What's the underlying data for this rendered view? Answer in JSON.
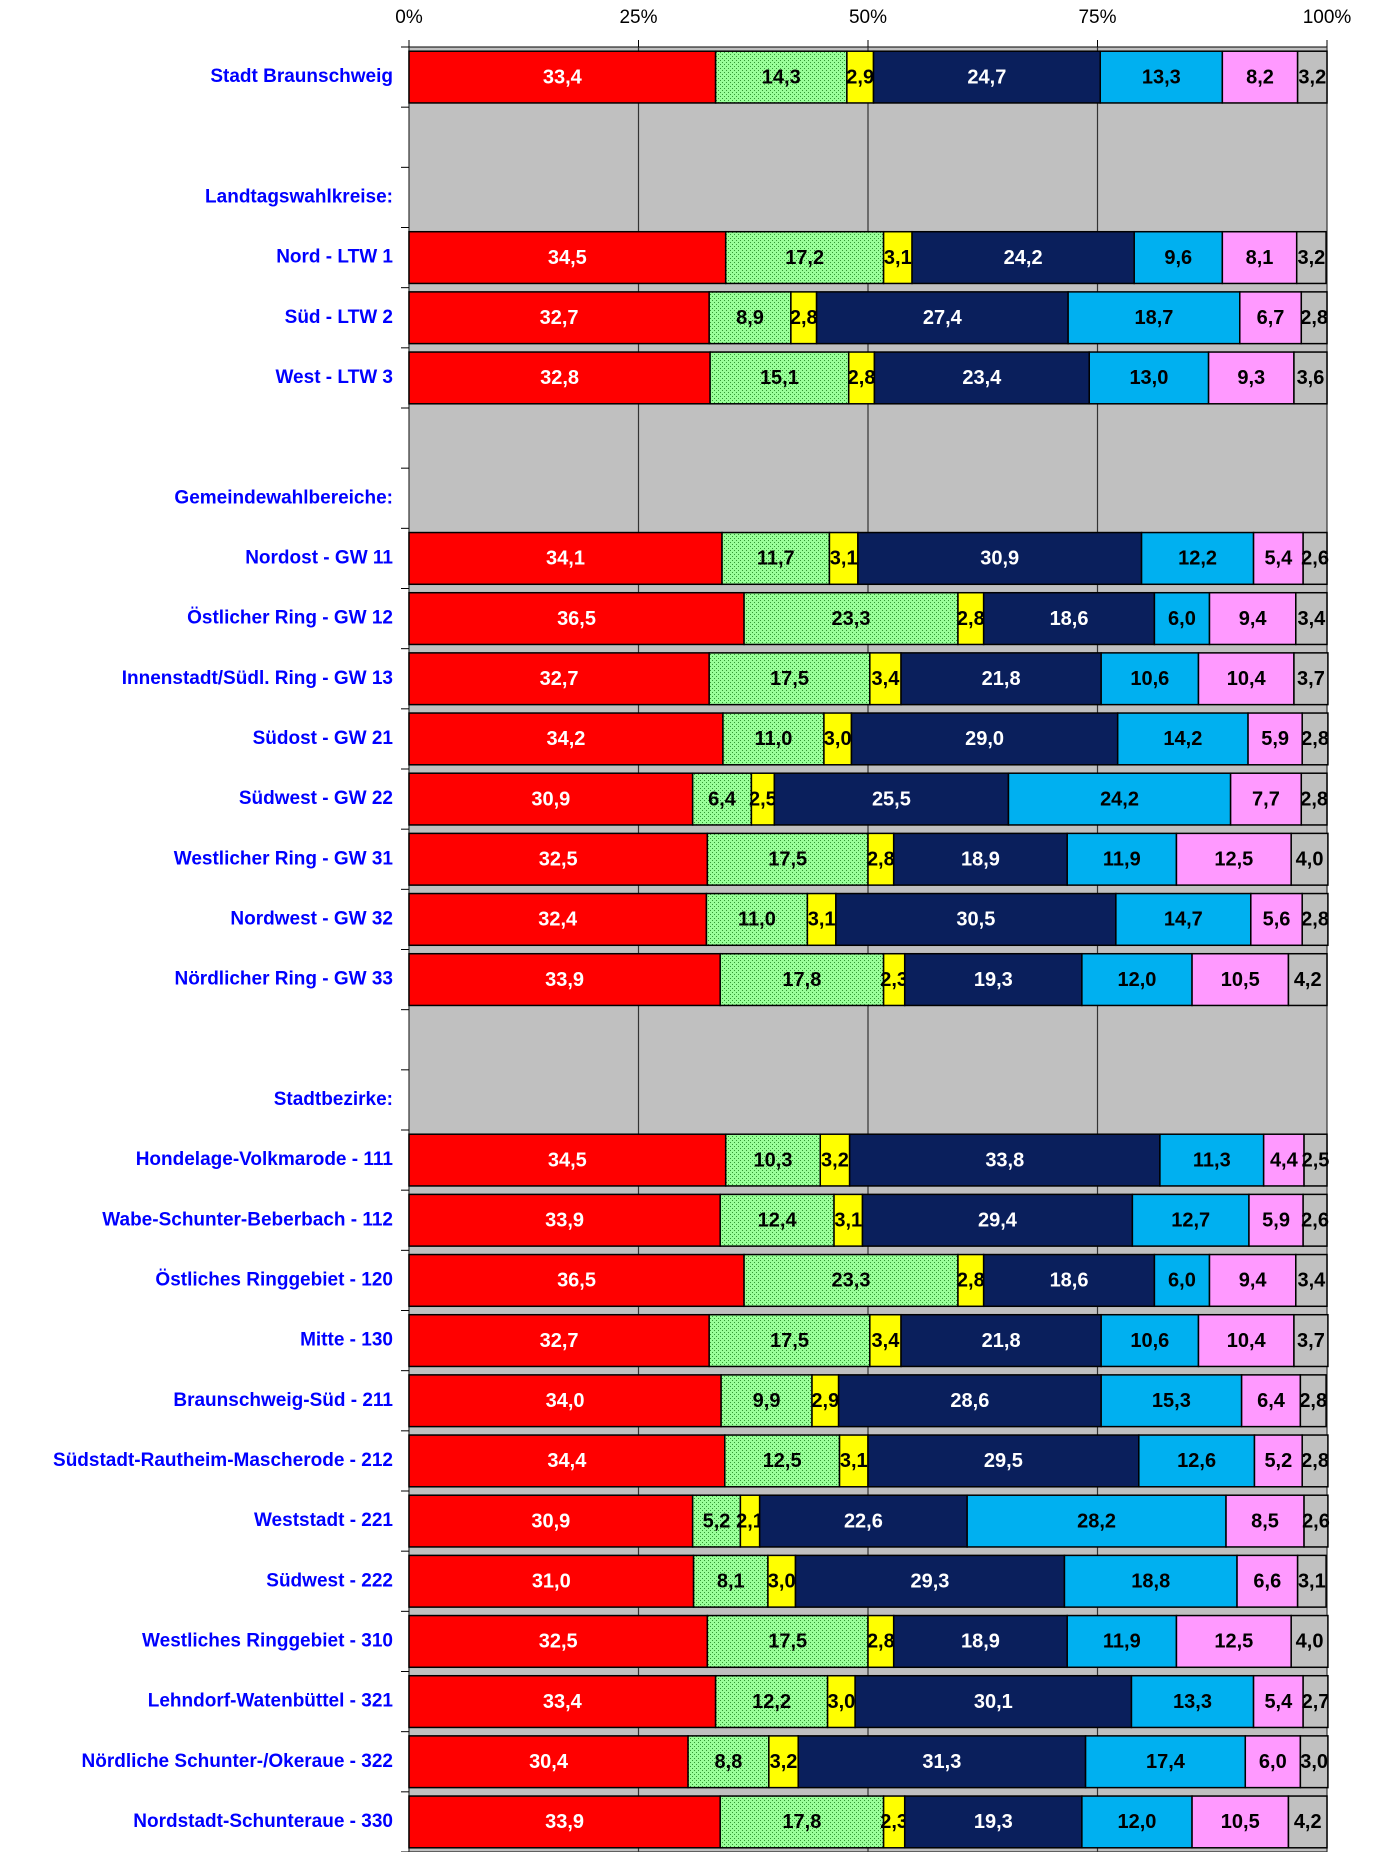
{
  "chart_data": {
    "type": "stacked_barh",
    "categories": [
      "Stadt Braunschweig",
      null,
      "Landtagswahlkreise:",
      "Nord - LTW 1",
      "Süd - LTW 2",
      "West - LTW 3",
      null,
      "Gemeindewahlbereiche:",
      "Nordost - GW 11",
      "Östlicher Ring - GW 12",
      "Innenstadt/Südl. Ring - GW 13",
      "Südost - GW 21",
      "Südwest - GW 22",
      "Westlicher Ring - GW 31",
      "Nordwest - GW 32",
      "Nördlicher Ring - GW 33",
      null,
      "Stadtbezirke:",
      "Hondelage-Volkmarode - 111",
      "Wabe-Schunter-Beberbach - 112",
      "Östliches Ringgebiet - 120",
      "Mitte - 130",
      "Braunschweig-Süd - 211",
      "Südstadt-Rautheim-Mascherode - 212",
      "Weststadt - 221",
      "Südwest - 222",
      "Westliches Ringgebiet - 310",
      "Lehndorf-Watenbüttel - 321",
      "Nördliche Schunter-/Okeraue - 322",
      "Nordstadt-Schunteraue - 330"
    ],
    "series": [
      {
        "color": "#ff0000",
        "label_color": "#ffffff",
        "values": [
          33.4,
          null,
          null,
          34.5,
          32.7,
          32.8,
          null,
          null,
          34.1,
          36.5,
          32.7,
          34.2,
          30.9,
          32.5,
          32.4,
          33.9,
          null,
          null,
          34.5,
          33.9,
          36.5,
          32.7,
          34.0,
          34.4,
          30.9,
          31.0,
          32.5,
          33.4,
          30.4,
          33.9
        ],
        "value_labels": [
          "33,4",
          null,
          null,
          "34,5",
          "32,7",
          "32,8",
          null,
          null,
          "34,1",
          "36,5",
          "32,7",
          "34,2",
          "30,9",
          "32,5",
          "32,4",
          "33,9",
          null,
          null,
          "34,5",
          "33,9",
          "36,5",
          "32,7",
          "34,0",
          "34,4",
          "30,9",
          "31,0",
          "32,5",
          "33,4",
          "30,4",
          "33,9"
        ]
      },
      {
        "color": "#99ff99",
        "label_color": "#000000",
        "pattern": "dots",
        "values": [
          14.3,
          null,
          null,
          17.2,
          8.9,
          15.1,
          null,
          null,
          11.7,
          23.3,
          17.5,
          11.0,
          6.4,
          17.5,
          11.0,
          17.8,
          null,
          null,
          10.3,
          12.4,
          23.3,
          17.5,
          9.9,
          12.5,
          5.2,
          8.1,
          17.5,
          12.2,
          8.8,
          17.8
        ],
        "value_labels": [
          "14,3",
          null,
          null,
          "17,2",
          "8,9",
          "15,1",
          null,
          null,
          "11,7",
          "23,3",
          "17,5",
          "11,0",
          "6,4",
          "17,5",
          "11,0",
          "17,8",
          null,
          null,
          "10,3",
          "12,4",
          "23,3",
          "17,5",
          "9,9",
          "12,5",
          "5,2",
          "8,1",
          "17,5",
          "12,2",
          "8,8",
          "17,8"
        ]
      },
      {
        "color": "#ffff00",
        "label_color": "#000000",
        "values": [
          2.9,
          null,
          null,
          3.1,
          2.8,
          2.8,
          null,
          null,
          3.1,
          2.8,
          3.4,
          3.0,
          2.5,
          2.8,
          3.1,
          2.3,
          null,
          null,
          3.2,
          3.1,
          2.8,
          3.4,
          2.9,
          3.1,
          2.1,
          3.0,
          2.8,
          3.0,
          3.2,
          2.3
        ],
        "value_labels": [
          "2,9",
          null,
          null,
          "3,1",
          "2,8",
          "2,8",
          null,
          null,
          "3,1",
          "2,8",
          "3,4",
          "3,0",
          "2,5",
          "2,8",
          "3,1",
          "2,3",
          null,
          null,
          "3,2",
          "3,1",
          "2,8",
          "3,4",
          "2,9",
          "3,1",
          "2,1",
          "3,0",
          "2,8",
          "3,0",
          "3,2",
          "2,3"
        ]
      },
      {
        "color": "#0a1f5c",
        "label_color": "#ffffff",
        "values": [
          24.7,
          null,
          null,
          24.2,
          27.4,
          23.4,
          null,
          null,
          30.9,
          18.6,
          21.8,
          29.0,
          25.5,
          18.9,
          30.5,
          19.3,
          null,
          null,
          33.8,
          29.4,
          18.6,
          21.8,
          28.6,
          29.5,
          22.6,
          29.3,
          18.9,
          30.1,
          31.3,
          19.3
        ],
        "value_labels": [
          "24,7",
          null,
          null,
          "24,2",
          "27,4",
          "23,4",
          null,
          null,
          "30,9",
          "18,6",
          "21,8",
          "29,0",
          "25,5",
          "18,9",
          "30,5",
          "19,3",
          null,
          null,
          "33,8",
          "29,4",
          "18,6",
          "21,8",
          "28,6",
          "29,5",
          "22,6",
          "29,3",
          "18,9",
          "30,1",
          "31,3",
          "19,3"
        ]
      },
      {
        "color": "#00b0f0",
        "label_color": "#000000",
        "values": [
          13.3,
          null,
          null,
          9.6,
          18.7,
          13.0,
          null,
          null,
          12.2,
          6.0,
          10.6,
          14.2,
          24.2,
          11.9,
          14.7,
          12.0,
          null,
          null,
          11.3,
          12.7,
          6.0,
          10.6,
          15.3,
          12.6,
          28.2,
          18.8,
          11.9,
          13.3,
          17.4,
          12.0
        ],
        "value_labels": [
          "13,3",
          null,
          null,
          "9,6",
          "18,7",
          "13,0",
          null,
          null,
          "12,2",
          "6,0",
          "10,6",
          "14,2",
          "24,2",
          "11,9",
          "14,7",
          "12,0",
          null,
          null,
          "11,3",
          "12,7",
          "6,0",
          "10,6",
          "15,3",
          "12,6",
          "28,2",
          "18,8",
          "11,9",
          "13,3",
          "17,4",
          "12,0"
        ]
      },
      {
        "color": "#ff99ff",
        "label_color": "#000000",
        "values": [
          8.2,
          null,
          null,
          8.1,
          6.7,
          9.3,
          null,
          null,
          5.4,
          9.4,
          10.4,
          5.9,
          7.7,
          12.5,
          5.6,
          10.5,
          null,
          null,
          4.4,
          5.9,
          9.4,
          10.4,
          6.4,
          5.2,
          8.5,
          6.6,
          12.5,
          5.4,
          6.0,
          10.5
        ],
        "value_labels": [
          "8,2",
          null,
          null,
          "8,1",
          "6,7",
          "9,3",
          null,
          null,
          "5,4",
          "9,4",
          "10,4",
          "5,9",
          "7,7",
          "12,5",
          "5,6",
          "10,5",
          null,
          null,
          "4,4",
          "5,9",
          "9,4",
          "10,4",
          "6,4",
          "5,2",
          "8,5",
          "6,6",
          "12,5",
          "5,4",
          "6,0",
          "10,5"
        ]
      },
      {
        "color": "#c0c0c0",
        "label_color": "#000000",
        "label_weight": "normal",
        "values": [
          3.2,
          null,
          null,
          3.2,
          2.8,
          3.6,
          null,
          null,
          2.6,
          3.4,
          3.7,
          2.8,
          2.8,
          4.0,
          2.8,
          4.2,
          null,
          null,
          2.5,
          2.6,
          3.4,
          3.7,
          2.8,
          2.8,
          2.6,
          3.1,
          4.0,
          2.7,
          3.0,
          4.2
        ],
        "value_labels": [
          "3,2",
          null,
          null,
          "3,2",
          "2,8",
          "3,6",
          null,
          null,
          "2,6",
          "3,4",
          "3,7",
          "2,8",
          "2,8",
          "4,0",
          "2,8",
          "4,2",
          null,
          null,
          "2,5",
          "2,6",
          "3,4",
          "3,7",
          "2,8",
          "2,8",
          "2,6",
          "3,1",
          "4,0",
          "2,7",
          "3,0",
          "4,2"
        ]
      }
    ],
    "xlim": [
      0,
      100
    ],
    "xticks": [
      {
        "value": 0,
        "label": "0%"
      },
      {
        "value": 25,
        "label": "25%"
      },
      {
        "value": 50,
        "label": "50%"
      },
      {
        "value": 75,
        "label": "75%"
      },
      {
        "value": 100,
        "label": "100%"
      }
    ],
    "grid": true,
    "plot_background": "#c0c0c0"
  }
}
